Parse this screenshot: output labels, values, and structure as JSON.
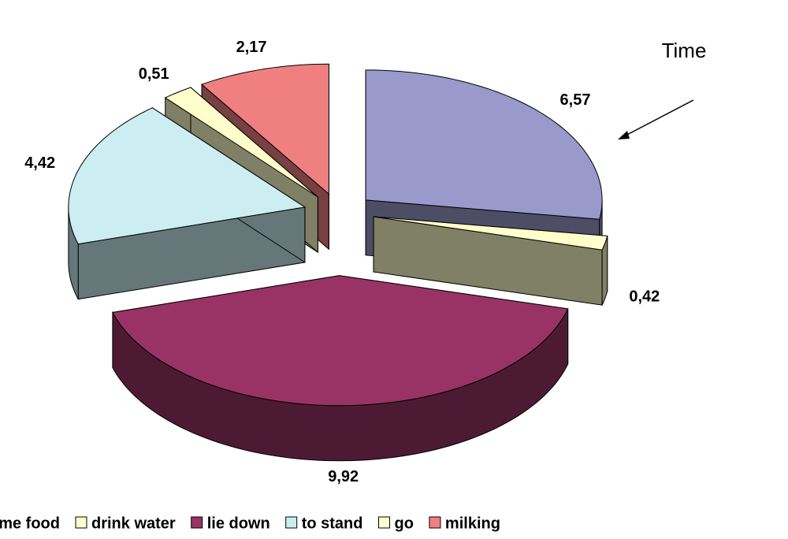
{
  "chart_data": {
    "type": "pie",
    "categories": [
      "time food",
      "drink water",
      "lie down",
      "to stand",
      "go",
      "milking"
    ],
    "values": [
      6.57,
      0.42,
      9.92,
      4.42,
      0.51,
      2.17
    ],
    "value_labels": [
      "6,57",
      "0,42",
      "9,92",
      "4,42",
      "0,51",
      "2,17"
    ],
    "colors": [
      "#9999cc",
      "#ffffcc",
      "#993366",
      "#cceef2",
      "#ffffcc",
      "#f08080"
    ],
    "annotation": "Time",
    "legend": "bottom"
  }
}
